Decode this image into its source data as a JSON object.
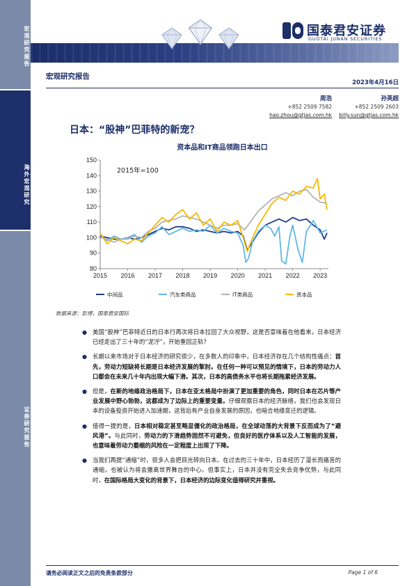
{
  "sidebar": {
    "blocks": [
      "宏观研究报告",
      "海外宏观研究",
      "证券研究报告"
    ]
  },
  "header": {
    "logo_cn": "国泰君安证券",
    "logo_en": "GUOTAI JUNAN SECURITIES",
    "report_type": "宏观研究报告",
    "date": "2023年4月16日"
  },
  "analysts": [
    {
      "name": "周浩",
      "phone": "+852 2509 7582",
      "email": "hao.zhou@gtjas.com.hk"
    },
    {
      "name": "孙英超",
      "phone": "+852 2509 2603",
      "email": "billy.sun@gtjas.com.hk"
    }
  ],
  "title": "日本：“股神”巴菲特的新宠？",
  "chart_title": "资本品和IT商品领跑日本出口",
  "chart_data": {
    "type": "line",
    "annotation": "2015年=100",
    "x_ticks": [
      "2015",
      "2016",
      "2017",
      "2018",
      "2019",
      "2020",
      "2021",
      "2022",
      "2023"
    ],
    "y_ticks": [
      "80",
      "90",
      "100",
      "110",
      "120",
      "130",
      "140",
      "150"
    ],
    "ylim": [
      80,
      150
    ],
    "xlim": [
      2015.0,
      2023.3
    ],
    "grid": false,
    "legend_position": "bottom",
    "series": [
      {
        "name": "中间品",
        "color": "#1f3c88",
        "x": [
          2015.0,
          2015.25,
          2015.5,
          2015.75,
          2016.0,
          2016.25,
          2016.5,
          2016.75,
          2017.0,
          2017.25,
          2017.5,
          2017.75,
          2018.0,
          2018.25,
          2018.5,
          2018.75,
          2019.0,
          2019.25,
          2019.5,
          2019.75,
          2020.0,
          2020.2,
          2020.35,
          2020.5,
          2020.75,
          2021.0,
          2021.25,
          2021.5,
          2021.75,
          2022.0,
          2022.25,
          2022.5,
          2022.75,
          2023.0,
          2023.15,
          2023.25
        ],
        "values": [
          101,
          100,
          99,
          99,
          100,
          99,
          100,
          102,
          104,
          106,
          105,
          107,
          107,
          106,
          104,
          105,
          104,
          103,
          104,
          103,
          104,
          101,
          92,
          96,
          103,
          108,
          110,
          112,
          110,
          113,
          111,
          112,
          108,
          105,
          99,
          103
        ]
      },
      {
        "name": "汽车类商品",
        "color": "#5fb7e5",
        "x": [
          2015.0,
          2015.25,
          2015.5,
          2015.75,
          2016.0,
          2016.25,
          2016.5,
          2016.75,
          2017.0,
          2017.25,
          2017.5,
          2017.75,
          2018.0,
          2018.25,
          2018.5,
          2018.75,
          2019.0,
          2019.25,
          2019.5,
          2019.75,
          2020.0,
          2020.2,
          2020.3,
          2020.4,
          2020.55,
          2020.75,
          2021.0,
          2021.2,
          2021.35,
          2021.5,
          2021.6,
          2021.75,
          2021.9,
          2022.0,
          2022.2,
          2022.35,
          2022.5,
          2022.75,
          2023.0,
          2023.25
        ],
        "values": [
          102,
          98,
          101,
          99,
          100,
          102,
          97,
          101,
          103,
          107,
          102,
          104,
          106,
          104,
          105,
          104,
          108,
          103,
          106,
          104,
          103,
          95,
          84,
          87,
          98,
          104,
          108,
          106,
          101,
          107,
          85,
          83,
          101,
          108,
          92,
          84,
          104,
          111,
          103,
          105
        ]
      },
      {
        "name": "IT类商品",
        "color": "#b3b3b3",
        "x": [
          2015.0,
          2015.25,
          2015.5,
          2015.75,
          2016.0,
          2016.25,
          2016.5,
          2016.75,
          2017.0,
          2017.25,
          2017.5,
          2017.75,
          2018.0,
          2018.25,
          2018.5,
          2018.75,
          2019.0,
          2019.25,
          2019.5,
          2019.75,
          2020.0,
          2020.25,
          2020.5,
          2020.75,
          2021.0,
          2021.25,
          2021.5,
          2021.75,
          2022.0,
          2022.25,
          2022.5,
          2022.75,
          2023.0,
          2023.25
        ],
        "values": [
          100,
          99,
          97,
          99,
          99,
          101,
          100,
          104,
          106,
          110,
          111,
          112,
          114,
          113,
          112,
          110,
          108,
          106,
          108,
          108,
          109,
          105,
          111,
          117,
          121,
          125,
          127,
          129,
          127,
          130,
          131,
          126,
          123,
          122
        ]
      },
      {
        "name": "资本品",
        "color": "#f5b800",
        "x": [
          2015.0,
          2015.25,
          2015.5,
          2015.75,
          2016.0,
          2016.25,
          2016.5,
          2016.75,
          2017.0,
          2017.25,
          2017.5,
          2017.75,
          2018.0,
          2018.25,
          2018.5,
          2018.75,
          2019.0,
          2019.25,
          2019.5,
          2019.75,
          2020.0,
          2020.2,
          2020.35,
          2020.5,
          2020.75,
          2021.0,
          2021.25,
          2021.5,
          2021.75,
          2022.0,
          2022.25,
          2022.5,
          2022.75,
          2022.9,
          2023.0,
          2023.15,
          2023.25
        ],
        "values": [
          103,
          96,
          100,
          98,
          96,
          99,
          98,
          103,
          108,
          113,
          110,
          115,
          118,
          112,
          116,
          108,
          112,
          104,
          110,
          108,
          111,
          100,
          91,
          98,
          108,
          115,
          122,
          126,
          124,
          130,
          128,
          133,
          132,
          138,
          125,
          128,
          118
        ]
      }
    ]
  },
  "source": "数据来源：彭博，国泰君安国际",
  "bullets": [
    {
      "segments": [
        {
          "t": "美国“股神”巴菲特近日的日本行再次将日本拉回了大众视野，这是否意味着在他看来，日本经济已经走出了三十年的“泥泞”，开始重回正轨？",
          "b": false
        }
      ]
    },
    {
      "segments": [
        {
          "t": "长期以来市场对于日本经济的研究很少，在多数人的印象中，日本经济存在几个结构性痛点：",
          "b": false
        },
        {
          "t": "首先，劳动力短缺将长期是日本经济发展的掣肘。在任何一种可以预见的情境下，日本的劳动力人口都会在未来几十年内出现大幅下滑。其次，日本的高债务水平也将长期拖累经济发展。",
          "b": true
        }
      ]
    },
    {
      "segments": [
        {
          "t": "但是，",
          "b": false
        },
        {
          "t": "在新的地缘政治格局下，日本在亚太格局中扮演了更加重要的角色，同时日本在芯片等产业发展中野心勃勃，这都成为了边际上的重要变量。",
          "b": true
        },
        {
          "t": "仔细观察日本的经济脉络，我们也会发现日本的设备投资开始进入加速期，这背后有产业自身发展的原因，也暗合地缘变迁的逻辑。",
          "b": false
        }
      ]
    },
    {
      "segments": [
        {
          "t": "值得一提的是，",
          "b": false
        },
        {
          "t": "日本相对稳定甚至略显僵化的政治格局，在全球动荡的大背景下反而成为了“避风港”。",
          "b": true
        },
        {
          "t": "与此同时，",
          "b": false
        },
        {
          "t": "劳动力的下滑趋势固然不可避免，但良好的医疗体系以及人工智能的发展，也意味着劳动力萎缩的风险在一定程度上出现了下降。",
          "b": true
        }
      ]
    },
    {
      "segments": [
        {
          "t": "当我们再提“通缩”时，很多人会把目光转向日本。在过去的三十年中，日本经历了漫长而痛苦的通缩，也被认为将会撤离世界舞台的中心。但事实上，日本并没有完全失去竞争优势，与此同时，",
          "b": false
        },
        {
          "t": "在国际格局大变化的背景下，日本经济的边际变化值得研究并重视。",
          "b": true
        }
      ]
    }
  ],
  "footer": {
    "disclaimer": "请务必阅读正文之后的免责条款部分",
    "page": "Page 1 of 6"
  },
  "colors": {
    "brand_navy": "#1c2f6b",
    "sidebar_gray_blue": "#7a8aa8"
  }
}
